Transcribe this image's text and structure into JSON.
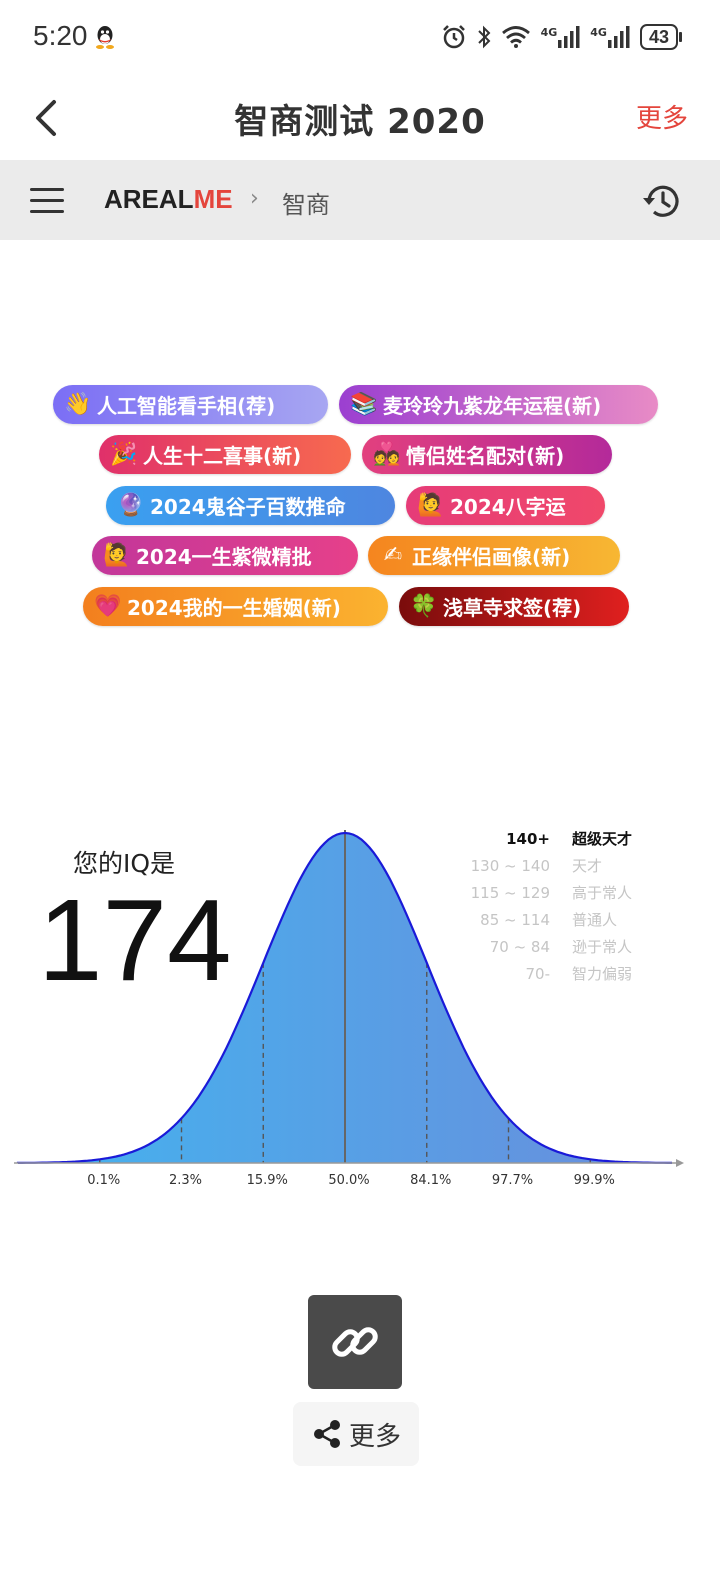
{
  "status_bar": {
    "time": "5:20",
    "network_1": "4G",
    "network_2": "4G",
    "battery": "43"
  },
  "app_bar": {
    "title": "智商测试 2020",
    "more_label": "更多"
  },
  "breadcrumb": {
    "brand_part1": "AREAL",
    "brand_part2": "ME",
    "separator": "›",
    "page": "智商"
  },
  "pills": [
    {
      "emoji": "👋",
      "label": "人工智能看手相(荐)",
      "color_from": "#7b6ef5",
      "color_to": "#a7a6f2"
    },
    {
      "emoji": "📚",
      "label": "麦玲玲九紫龙年运程(新)",
      "color_from": "#9b3fd0",
      "color_to": "#e88bc6"
    },
    {
      "emoji": "🎉",
      "label": "人生十二喜事(新)",
      "color_from": "#e0306a",
      "color_to": "#f76a4f"
    },
    {
      "emoji": "💑",
      "label": "情侣姓名配对(新)",
      "color_from": "#e2407e",
      "color_to": "#b42a9a"
    },
    {
      "emoji": "🔮",
      "label": "2024鬼谷子百数推命",
      "color_from": "#3aa0f0",
      "color_to": "#4e86e0"
    },
    {
      "emoji": "🙋",
      "label": "2024八字运",
      "color_from": "#e63c78",
      "color_to": "#f0486a"
    },
    {
      "emoji": "🙋",
      "label": "2024一生紫微精批",
      "color_from": "#c2379a",
      "color_to": "#e6408a"
    },
    {
      "emoji": "✍",
      "label": "正缘伴侣画像(新)",
      "color_from": "#f5851f",
      "color_to": "#f7b733"
    },
    {
      "emoji": "💗",
      "label": "2024我的一生婚姻(新)",
      "color_from": "#f37f1e",
      "color_to": "#fbb330"
    },
    {
      "emoji": "🍀",
      "label": "浅草寺求签(荐)",
      "color_from": "#7a0c0c",
      "color_to": "#e0201f"
    }
  ],
  "result": {
    "label": "您的IQ是",
    "value": "174"
  },
  "legend": [
    {
      "range": "140+",
      "name": "超级天才",
      "highlight": true
    },
    {
      "range": "130 ~ 140",
      "name": "天才",
      "highlight": false
    },
    {
      "range": "115 ~ 129",
      "name": "高于常人",
      "highlight": false
    },
    {
      "range": "85 ~ 114",
      "name": "普通人",
      "highlight": false
    },
    {
      "range": "70 ~ 84",
      "name": "逊于常人",
      "highlight": false
    },
    {
      "range": "70-",
      "name": "智力偏弱",
      "highlight": false
    }
  ],
  "chart_data": {
    "type": "area",
    "x_sigma": [
      -3,
      -2,
      -1,
      0,
      1,
      2,
      3
    ],
    "tick_labels": [
      "0.1%",
      "2.3%",
      "15.9%",
      "50.0%",
      "84.1%",
      "97.7%",
      "99.9%"
    ],
    "curve": "normal distribution",
    "xlim_sigma": [
      -4,
      4
    ],
    "fill_from": "#43b3ef",
    "fill_to": "#6a8ddc",
    "stroke": "#1a1ad8"
  },
  "bottom": {
    "share_label": "更多"
  }
}
